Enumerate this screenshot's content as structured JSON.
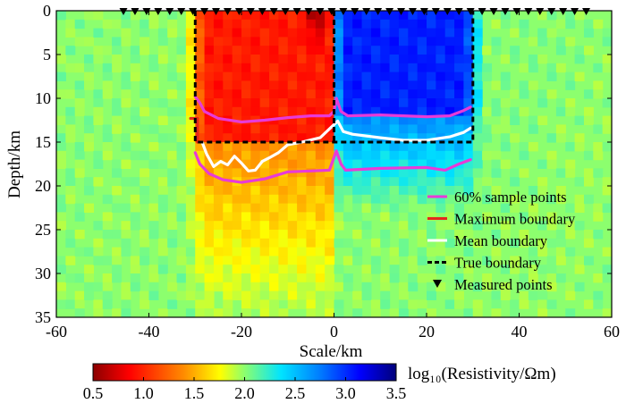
{
  "chart_data": {
    "type": "heatmap",
    "xlabel": "Scale/km",
    "ylabel": "Depth/km",
    "xlim": [
      -60,
      60
    ],
    "ylim": [
      0,
      35
    ],
    "y_inverted": true,
    "xticks": [
      -60,
      -40,
      -20,
      0,
      20,
      40,
      60
    ],
    "yticks": [
      0,
      5,
      10,
      15,
      20,
      25,
      30,
      35
    ],
    "colorbar": {
      "label": "log₁₀(Resistivity/Ωm)",
      "min": 0.5,
      "max": 3.5,
      "ticks": [
        0.5,
        1.0,
        1.5,
        2.0,
        2.5,
        3.0,
        3.5
      ],
      "tick_labels": [
        "0.5",
        "1.0",
        "1.5",
        "2.0",
        "2.5",
        "3.0",
        "3.5"
      ],
      "colormap": "jet_reversed"
    },
    "background_log_resistivity": 2.0,
    "anomalies": [
      {
        "name": "conductive body",
        "log_resistivity": 1.0,
        "x_range": [
          -30,
          0
        ],
        "depth_range": [
          0,
          15
        ]
      },
      {
        "name": "resistive body",
        "log_resistivity": 3.0,
        "x_range": [
          0,
          30
        ],
        "depth_range": [
          0,
          15
        ]
      }
    ],
    "series": [
      {
        "name": "60% sample points",
        "color": "#e83ad8",
        "style": "solid",
        "segments": [
          [
            [
              -30,
              9.8
            ],
            [
              -29,
              10.5
            ],
            [
              -28,
              11.5
            ],
            [
              -25,
              12.3
            ],
            [
              -20,
              12.7
            ],
            [
              -15,
              12.5
            ],
            [
              -10,
              12.2
            ],
            [
              -5,
              12.0
            ],
            [
              -1,
              12.0
            ],
            [
              0,
              11.5
            ],
            [
              0.5,
              10.0
            ]
          ],
          [
            [
              0.5,
              10.0
            ],
            [
              1.5,
              11.5
            ],
            [
              3,
              12.0
            ],
            [
              10,
              11.9
            ],
            [
              20,
              12.1
            ],
            [
              25,
              12.0
            ],
            [
              28,
              11.4
            ],
            [
              29.5,
              11.0
            ]
          ],
          [
            [
              -30,
              16.2
            ],
            [
              -29,
              17.5
            ],
            [
              -27,
              18.6
            ],
            [
              -24,
              19.3
            ],
            [
              -20,
              19.6
            ],
            [
              -15,
              19.2
            ],
            [
              -10,
              18.4
            ],
            [
              -5,
              18.3
            ],
            [
              -1,
              18.2
            ],
            [
              0.5,
              16.0
            ],
            [
              1.5,
              17.5
            ]
          ],
          [
            [
              1.5,
              17.5
            ],
            [
              2.5,
              18.2
            ],
            [
              10,
              18.0
            ],
            [
              20,
              17.9
            ],
            [
              24,
              18.2
            ],
            [
              27,
              17.5
            ],
            [
              29.5,
              17.0
            ]
          ]
        ]
      },
      {
        "name": "Maximum boundary",
        "color": "#e4271d",
        "style": "solid",
        "segments": [
          [
            [
              -31,
              12.3
            ],
            [
              -29.5,
              12.3
            ],
            [
              -29.5,
              15.0
            ]
          ]
        ]
      },
      {
        "name": "Mean boundary",
        "color": "#ffffff",
        "style": "solid",
        "segments": [
          [
            [
              -28.5,
              15.0
            ],
            [
              -27.5,
              16.4
            ],
            [
              -26,
              17.8
            ],
            [
              -24.5,
              17.2
            ],
            [
              -23,
              17.6
            ],
            [
              -21.5,
              16.6
            ],
            [
              -20,
              17.4
            ],
            [
              -18.5,
              18.3
            ],
            [
              -17,
              18.2
            ],
            [
              -15.5,
              17.2
            ],
            [
              -14,
              16.8
            ],
            [
              -12,
              16.2
            ],
            [
              -10,
              15.3
            ],
            [
              -7,
              15.0
            ],
            [
              -3,
              14.5
            ],
            [
              -1,
              13.5
            ],
            [
              0,
              13.0
            ],
            [
              0.8,
              12.6
            ],
            [
              2,
              13.8
            ],
            [
              4,
              14.1
            ],
            [
              10,
              14.5
            ],
            [
              15,
              14.8
            ],
            [
              20,
              14.8
            ],
            [
              25,
              14.4
            ],
            [
              28,
              13.9
            ],
            [
              29.5,
              13.4
            ]
          ]
        ]
      },
      {
        "name": "True boundary",
        "color": "#000000",
        "style": "dashed",
        "segments": [
          [
            [
              -30,
              0
            ],
            [
              -30,
              15
            ],
            [
              30,
              15
            ],
            [
              30,
              0
            ]
          ],
          [
            [
              0,
              0
            ],
            [
              0,
              15
            ]
          ]
        ]
      }
    ],
    "measured_points": {
      "name": "Measured points",
      "marker": "downward triangle",
      "x": [
        -45.5,
        -43,
        -40.5,
        -38,
        -35.5,
        -33,
        -30.5,
        -28,
        -25.5,
        -23,
        -20.5,
        -18,
        -15.5,
        -13,
        -10.5,
        -8,
        -5.5,
        -3,
        -0.5,
        2,
        4.5,
        7,
        9.5,
        12,
        14.5,
        17,
        19.5,
        22,
        24.5,
        27,
        29.5,
        32,
        34.5,
        37,
        39.5,
        42,
        44.5,
        47,
        49.5,
        52,
        54.5
      ],
      "depth": 0
    },
    "legend": {
      "placement": "lower-right",
      "entries": [
        "60% sample points",
        "Maximum boundary",
        "Mean boundary",
        "True boundary",
        "Measured points"
      ]
    }
  }
}
